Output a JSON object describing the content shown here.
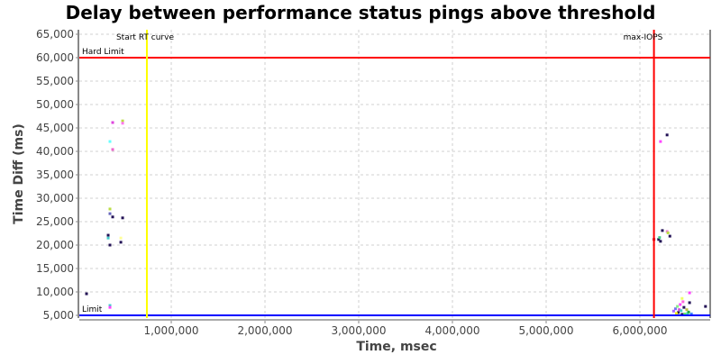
{
  "chart_data": {
    "type": "scatter",
    "title": "Delay between performance status pings above threshold",
    "xlabel": "Time, msec",
    "ylabel": "Time Diff (ms)",
    "xlim": [
      19000,
      6750000
    ],
    "ylim": [
      4420,
      65960
    ],
    "x_ticks": [
      1000000,
      2000000,
      3000000,
      4000000,
      5000000,
      6000000
    ],
    "x_tick_labels": [
      "1,000,000",
      "2,000,000",
      "3,000,000",
      "4,000,000",
      "5,000,000",
      "6,000,000"
    ],
    "y_ticks": [
      5000,
      10000,
      15000,
      20000,
      25000,
      30000,
      35000,
      40000,
      45000,
      50000,
      55000,
      60000,
      65000
    ],
    "y_tick_labels": [
      "5,000",
      "10,000",
      "15,000",
      "20,000",
      "25,000",
      "30,000",
      "35,000",
      "40,000",
      "45,000",
      "50,000",
      "55,000",
      "60,000",
      "65,000"
    ],
    "grid": true,
    "lines": [
      {
        "label": "Hard Limit",
        "orientation": "horizontal",
        "value": 60000,
        "color": "#ff0000"
      },
      {
        "label": "Limit",
        "orientation": "horizontal",
        "value": 5000,
        "color": "#0000ff"
      },
      {
        "label": "Start RT curve",
        "orientation": "vertical",
        "value": 740000,
        "color": "#ffff00"
      },
      {
        "label": "max-IOPS",
        "orientation": "vertical",
        "value": 6150000,
        "color": "#ff0000"
      }
    ],
    "points": [
      {
        "x": 375000,
        "y": 46150,
        "color": "#dd44dd"
      },
      {
        "x": 481000,
        "y": 46500,
        "color": "#bbdd44"
      },
      {
        "x": 481000,
        "y": 46000,
        "color": "#ff77ee"
      },
      {
        "x": 346000,
        "y": 42100,
        "color": "#66ffff"
      },
      {
        "x": 375000,
        "y": 40400,
        "color": "#ee66cc"
      },
      {
        "x": 346000,
        "y": 27700,
        "color": "#bbdd44"
      },
      {
        "x": 346000,
        "y": 26700,
        "color": "#6666bb"
      },
      {
        "x": 375000,
        "y": 26000,
        "color": "#221155"
      },
      {
        "x": 481000,
        "y": 25800,
        "color": "#221155"
      },
      {
        "x": 327000,
        "y": 22100,
        "color": "#221155"
      },
      {
        "x": 327000,
        "y": 21500,
        "color": "#44cccc"
      },
      {
        "x": 346000,
        "y": 20000,
        "color": "#221155"
      },
      {
        "x": 462000,
        "y": 21500,
        "color": "#ffff99"
      },
      {
        "x": 462000,
        "y": 20600,
        "color": "#221155"
      },
      {
        "x": 96000,
        "y": 9600,
        "color": "#221155"
      },
      {
        "x": 346000,
        "y": 7100,
        "color": "#44cccc"
      },
      {
        "x": 346000,
        "y": 6700,
        "color": "#ff44ff"
      },
      {
        "x": 6290000,
        "y": 43500,
        "color": "#221155"
      },
      {
        "x": 6220000,
        "y": 42100,
        "color": "#ff44ff"
      },
      {
        "x": 6240000,
        "y": 23100,
        "color": "#221155"
      },
      {
        "x": 6290000,
        "y": 22900,
        "color": "#ee88cc"
      },
      {
        "x": 6300000,
        "y": 22600,
        "color": "#bbdd44"
      },
      {
        "x": 6320000,
        "y": 21900,
        "color": "#221155"
      },
      {
        "x": 6150000,
        "y": 21200,
        "color": "#aa1133"
      },
      {
        "x": 6200000,
        "y": 21200,
        "color": "#221155"
      },
      {
        "x": 6210000,
        "y": 21600,
        "color": "#44cc88"
      },
      {
        "x": 6220000,
        "y": 20800,
        "color": "#221155"
      },
      {
        "x": 6530000,
        "y": 9800,
        "color": "#ff44ff"
      },
      {
        "x": 6530000,
        "y": 7700,
        "color": "#221155"
      },
      {
        "x": 6700000,
        "y": 6900,
        "color": "#221155"
      },
      {
        "x": 6380000,
        "y": 6400,
        "color": "#7777ee"
      },
      {
        "x": 6400000,
        "y": 6900,
        "color": "#88ee88"
      },
      {
        "x": 6410000,
        "y": 5600,
        "color": "#221155"
      },
      {
        "x": 6420000,
        "y": 6200,
        "color": "#dd44dd"
      },
      {
        "x": 6430000,
        "y": 7300,
        "color": "#ff44ff"
      },
      {
        "x": 6440000,
        "y": 6000,
        "color": "#44cccc"
      },
      {
        "x": 6450000,
        "y": 8600,
        "color": "#eeff66"
      },
      {
        "x": 6460000,
        "y": 7900,
        "color": "#ff66dd"
      },
      {
        "x": 6470000,
        "y": 6700,
        "color": "#221155"
      },
      {
        "x": 6480000,
        "y": 5300,
        "color": "#66ee66"
      },
      {
        "x": 6500000,
        "y": 6200,
        "color": "#bbbb44"
      },
      {
        "x": 6510000,
        "y": 5400,
        "color": "#44cccc"
      },
      {
        "x": 6520000,
        "y": 5700,
        "color": "#22aa44"
      },
      {
        "x": 6390000,
        "y": 5400,
        "color": "#ffee00"
      },
      {
        "x": 6550000,
        "y": 5300,
        "color": "#4488ff"
      },
      {
        "x": 6450000,
        "y": 5200,
        "color": "#221155"
      },
      {
        "x": 6360000,
        "y": 5900,
        "color": "#aa66ff"
      }
    ]
  }
}
